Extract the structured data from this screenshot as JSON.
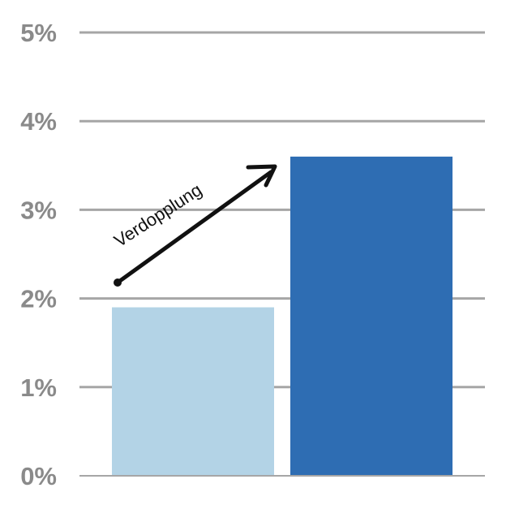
{
  "chart_data": {
    "type": "bar",
    "categories": [
      "",
      ""
    ],
    "values": [
      1.9,
      3.6
    ],
    "bar_colors": [
      "#b3d3e6",
      "#2e6db3"
    ],
    "title": "",
    "xlabel": "",
    "ylabel": "",
    "ylim": [
      0,
      5
    ],
    "yticks": [
      0,
      1,
      2,
      3,
      4,
      5
    ],
    "ytick_labels": [
      "0%",
      "1%",
      "2%",
      "3%",
      "4%",
      "5%"
    ],
    "grid": true,
    "grid_color": "#a6a6a6",
    "tick_label_color": "#8a8a8a",
    "annotation": {
      "text": "Verdopplung",
      "arrow": "from-bar-1-to-bar-2",
      "color": "#111111"
    }
  }
}
